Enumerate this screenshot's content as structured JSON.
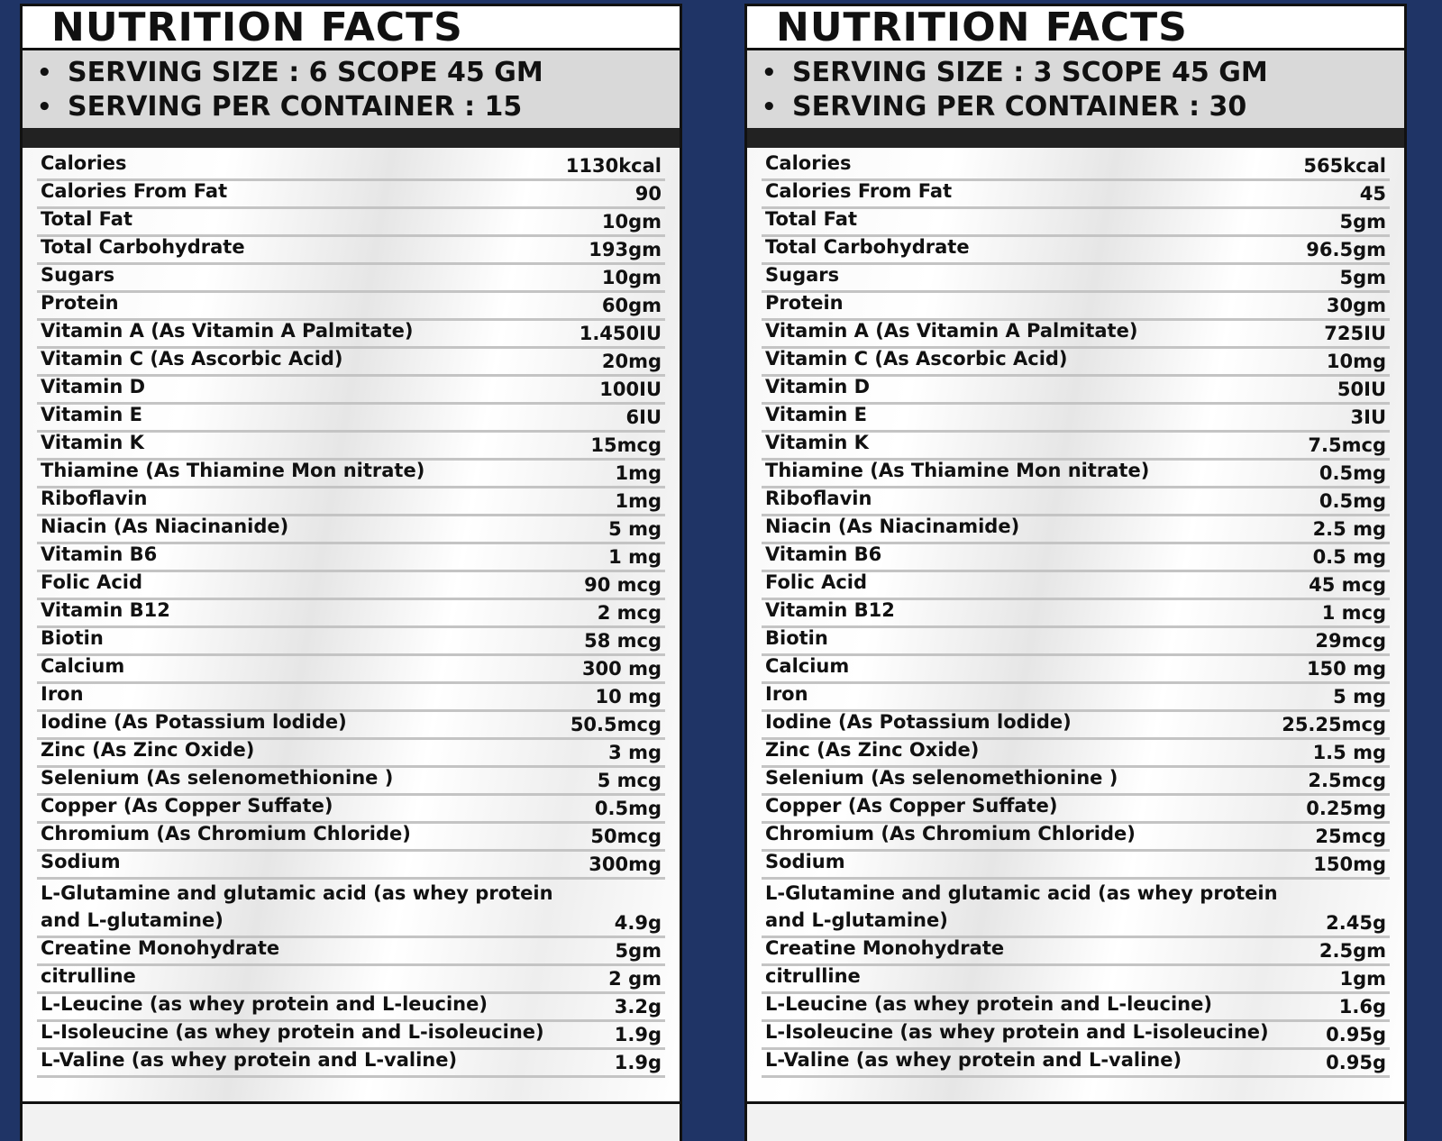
{
  "panels": [
    {
      "title": "NUTRITION FACTS",
      "serving_size": "SERVING SIZE : 6 SCOPE 45 GM",
      "servings_per_container": "SERVING PER CONTAINER : 15",
      "rows": [
        {
          "name": "Calories",
          "value": "1130kcal"
        },
        {
          "name": "Calories From Fat",
          "value": "90"
        },
        {
          "name": "Total Fat",
          "value": "10gm"
        },
        {
          "name": "Total Carbohydrate",
          "value": "193gm"
        },
        {
          "name": "Sugars",
          "value": "10gm"
        },
        {
          "name": "Protein",
          "value": "60gm"
        },
        {
          "name": "Vitamin A (As Vitamin A Palmitate)",
          "value": "1.450IU"
        },
        {
          "name": "Vitamin C (As Ascorbic Acid)",
          "value": "20mg"
        },
        {
          "name": "Vitamin D",
          "value": "100IU"
        },
        {
          "name": "Vitamin E",
          "value": "6IU"
        },
        {
          "name": "Vitamin K",
          "value": "15mcg"
        },
        {
          "name": "Thiamine (As Thiamine Mon nitrate)",
          "value": "1mg"
        },
        {
          "name": "Riboflavin",
          "value": "1mg"
        },
        {
          "name": "Niacin (As Niacinanide)",
          "value": "5 mg"
        },
        {
          "name": "Vitamin B6",
          "value": "1 mg"
        },
        {
          "name": "Folic Acid",
          "value": "90 mcg"
        },
        {
          "name": "Vitamin B12",
          "value": "2 mcg"
        },
        {
          "name": "Biotin",
          "value": "58 mcg"
        },
        {
          "name": "Calcium",
          "value": "300 mg"
        },
        {
          "name": "Iron",
          "value": "10 mg"
        },
        {
          "name": "Iodine (As Potassium lodide)",
          "value": "50.5mcg"
        },
        {
          "name": "Zinc (As Zinc Oxide)",
          "value": "3 mg"
        },
        {
          "name": "Selenium (As selenomethionine )",
          "value": "5 mcg"
        },
        {
          "name": "Copper (As Copper Suffate)",
          "value": "0.5mg"
        },
        {
          "name": "Chromium (As Chromium Chloride)",
          "value": "50mcg"
        },
        {
          "name": "Sodium",
          "value": "300mg"
        },
        {
          "name": "L-Glutamine and glutamic acid (as whey protein\nand L-glutamine)",
          "value": "4.9g"
        },
        {
          "name": "Creatine Monohydrate",
          "value": "5gm"
        },
        {
          "name": "citrulline",
          "value": "2 gm"
        },
        {
          "name": "L-Leucine (as whey protein and L-leucine)",
          "value": "3.2g"
        },
        {
          "name": "L-Isoleucine (as whey protein and L-isoleucine)",
          "value": "1.9g"
        },
        {
          "name": "L-Valine (as whey protein and L-valine)",
          "value": "1.9g"
        }
      ]
    },
    {
      "title": "NUTRITION FACTS",
      "serving_size": "SERVING SIZE : 3 SCOPE 45 GM",
      "servings_per_container": "SERVING PER CONTAINER : 30",
      "rows": [
        {
          "name": "Calories",
          "value": "565kcal"
        },
        {
          "name": "Calories From Fat",
          "value": "45"
        },
        {
          "name": "Total Fat",
          "value": "5gm"
        },
        {
          "name": "Total Carbohydrate",
          "value": "96.5gm"
        },
        {
          "name": "Sugars",
          "value": "5gm"
        },
        {
          "name": "Protein",
          "value": "30gm"
        },
        {
          "name": "Vitamin A (As Vitamin A Palmitate)",
          "value": "725IU"
        },
        {
          "name": "Vitamin C (As Ascorbic Acid)",
          "value": "10mg"
        },
        {
          "name": "Vitamin D",
          "value": "50IU"
        },
        {
          "name": "Vitamin E",
          "value": "3IU"
        },
        {
          "name": "Vitamin K",
          "value": "7.5mcg"
        },
        {
          "name": "Thiamine (As Thiamine Mon nitrate)",
          "value": "0.5mg"
        },
        {
          "name": "Riboflavin",
          "value": "0.5mg"
        },
        {
          "name": "Niacin (As Niacinamide)",
          "value": "2.5 mg"
        },
        {
          "name": "Vitamin B6",
          "value": "0.5 mg"
        },
        {
          "name": "Folic Acid",
          "value": "45 mcg"
        },
        {
          "name": "Vitamin B12",
          "value": "1 mcg"
        },
        {
          "name": "Biotin",
          "value": "29mcg"
        },
        {
          "name": "Calcium",
          "value": "150 mg"
        },
        {
          "name": "Iron",
          "value": "5 mg"
        },
        {
          "name": "Iodine (As Potassium lodide)",
          "value": "25.25mcg"
        },
        {
          "name": "Zinc (As Zinc Oxide)",
          "value": "1.5 mg"
        },
        {
          "name": "Selenium (As selenomethionine )",
          "value": "2.5mcg"
        },
        {
          "name": "Copper (As Copper Suffate)",
          "value": "0.25mg"
        },
        {
          "name": "Chromium (As Chromium Chloride)",
          "value": "25mcg"
        },
        {
          "name": "Sodium",
          "value": "150mg"
        },
        {
          "name": "L-Glutamine and glutamic acid (as whey protein\nand L-glutamine)",
          "value": "2.45g"
        },
        {
          "name": "Creatine Monohydrate",
          "value": "2.5gm"
        },
        {
          "name": "citrulline",
          "value": "1gm"
        },
        {
          "name": "L-Leucine (as whey protein and L-leucine)",
          "value": "1.6g"
        },
        {
          "name": "L-Isoleucine (as whey protein and L-isoleucine)",
          "value": "0.95g"
        },
        {
          "name": "L-Valine (as whey protein and L-valine)",
          "value": "0.95g"
        }
      ]
    }
  ],
  "colors": {
    "background": "#1f3466",
    "serving_band": "#d9d9d9",
    "dark_bar": "#222222",
    "row_divider": "#c4c4c4"
  }
}
